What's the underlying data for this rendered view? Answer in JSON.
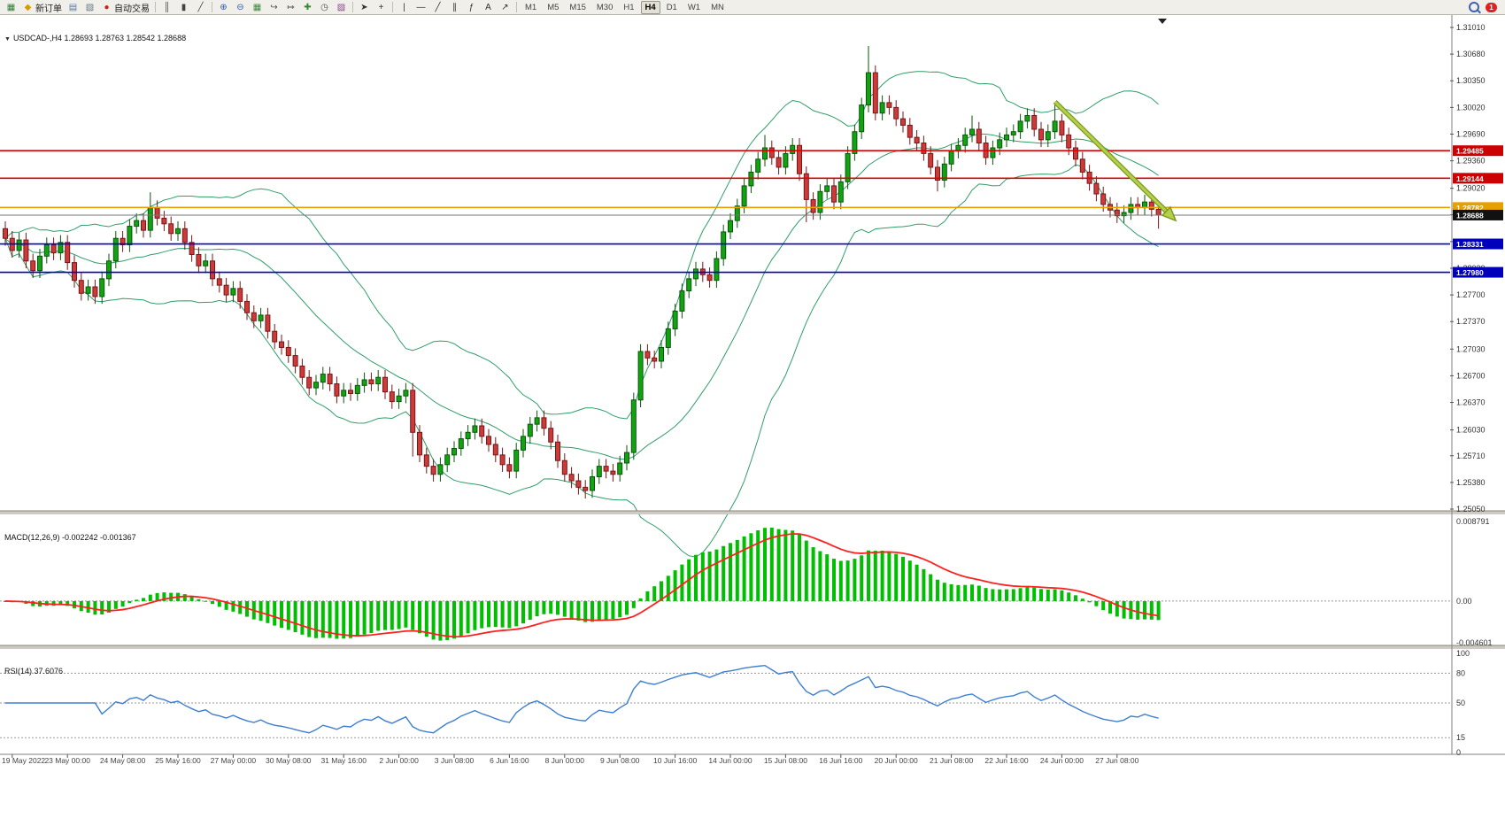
{
  "toolbar": {
    "groups": [
      {
        "items": [
          {
            "name": "new-chart",
            "glyph": "▦",
            "color": "#2e7d32"
          },
          {
            "name": "new-order",
            "glyph": "◆",
            "color": "#d89c00",
            "label": "新订单"
          },
          {
            "name": "print",
            "glyph": "▤",
            "color": "#5577aa"
          },
          {
            "name": "chart-profiles",
            "glyph": "▧",
            "color": "#667788"
          },
          {
            "name": "auto-trading",
            "glyph": "●",
            "color": "#cc2020",
            "label": "自动交易"
          }
        ]
      },
      {
        "items": [
          {
            "name": "bar-chart",
            "glyph": "║",
            "color": "#444444"
          },
          {
            "name": "candlestick-chart",
            "glyph": "▮",
            "color": "#444444"
          },
          {
            "name": "line-chart",
            "glyph": "╱",
            "color": "#444444"
          }
        ]
      },
      {
        "items": [
          {
            "name": "zoom-in",
            "glyph": "⊕",
            "color": "#3355bb"
          },
          {
            "name": "zoom-out",
            "glyph": "⊖",
            "color": "#3355bb"
          },
          {
            "name": "tile-windows",
            "glyph": "▦",
            "color": "#3a8a3a"
          },
          {
            "name": "auto-scroll",
            "glyph": "↪",
            "color": "#555555"
          },
          {
            "name": "chart-shift",
            "glyph": "↦",
            "color": "#555555"
          },
          {
            "name": "indicators",
            "glyph": "✚",
            "color": "#2e8b2e"
          },
          {
            "name": "periods",
            "glyph": "◷",
            "color": "#555555"
          },
          {
            "name": "templates",
            "glyph": "▨",
            "color": "#884488"
          }
        ]
      },
      {
        "items": [
          {
            "name": "cursor",
            "glyph": "➤",
            "color": "#333333"
          },
          {
            "name": "crosshair",
            "glyph": "+",
            "color": "#333333"
          }
        ]
      },
      {
        "items": [
          {
            "name": "vertical-line",
            "glyph": "|",
            "color": "#333333"
          },
          {
            "name": "horizontal-line",
            "glyph": "—",
            "color": "#333333"
          },
          {
            "name": "trendline",
            "glyph": "╱",
            "color": "#333333"
          },
          {
            "name": "equidistant-channel",
            "glyph": "∥",
            "color": "#333333"
          },
          {
            "name": "fibonacci",
            "glyph": "ƒ",
            "color": "#333333"
          },
          {
            "name": "text",
            "glyph": "A",
            "color": "#333333"
          },
          {
            "name": "arrows",
            "glyph": "↗",
            "color": "#333333"
          }
        ]
      }
    ],
    "timeframes": [
      "M1",
      "M5",
      "M15",
      "M30",
      "H1",
      "H4",
      "D1",
      "W1",
      "MN"
    ],
    "active_timeframe": "H4",
    "notification_count": "1"
  },
  "chart_data": {
    "type": "candlestick",
    "corner_marker": "▼",
    "symbol_info": "USDCAD-,H4  1.28693 1.28763 1.28542 1.28688",
    "up_color": "#12a312",
    "up_stroke": "#0a560a",
    "down_color": "#cc3a3a",
    "down_stroke": "#7a1515",
    "first_open": 1.2852,
    "default_wick": 0.0009,
    "closes": [
      1.284,
      1.2825,
      1.2838,
      1.2812,
      1.28,
      1.2818,
      1.2832,
      1.2822,
      1.2835,
      1.281,
      1.2788,
      1.2772,
      1.278,
      1.2768,
      1.279,
      1.2812,
      1.284,
      1.2832,
      1.2855,
      1.2862,
      1.285,
      1.2878,
      1.2865,
      1.2858,
      1.2846,
      1.2852,
      1.2835,
      1.282,
      1.2806,
      1.2812,
      1.279,
      1.2782,
      1.277,
      1.2778,
      1.2762,
      1.2748,
      1.2738,
      1.2745,
      1.2725,
      1.2712,
      1.2705,
      1.2695,
      1.2682,
      1.2668,
      1.2655,
      1.2662,
      1.2672,
      1.266,
      1.2645,
      1.2652,
      1.2648,
      1.2658,
      1.2665,
      1.266,
      1.2668,
      1.265,
      1.2638,
      1.2645,
      1.2652,
      1.26,
      1.2572,
      1.2558,
      1.2548,
      1.256,
      1.2572,
      1.258,
      1.2592,
      1.26,
      1.2608,
      1.2595,
      1.2585,
      1.2572,
      1.256,
      1.2552,
      1.2578,
      1.2595,
      1.261,
      1.2618,
      1.2605,
      1.2588,
      1.2565,
      1.2548,
      1.254,
      1.2532,
      1.2528,
      1.2545,
      1.2558,
      1.2552,
      1.2548,
      1.2562,
      1.2575,
      1.264,
      1.27,
      1.2692,
      1.2688,
      1.2705,
      1.2728,
      1.275,
      1.2775,
      1.279,
      1.2802,
      1.2795,
      1.2788,
      1.2815,
      1.2848,
      1.2862,
      1.288,
      1.2905,
      1.2922,
      1.2938,
      1.2952,
      1.294,
      1.2928,
      1.2945,
      1.2955,
      1.292,
      1.2888,
      1.2872,
      1.2898,
      1.2905,
      1.2885,
      1.291,
      1.2945,
      1.2972,
      1.3005,
      1.3045,
      1.2995,
      1.3008,
      1.3002,
      1.2988,
      1.298,
      1.2965,
      1.2958,
      1.2945,
      1.2928,
      1.2912,
      1.2932,
      1.2948,
      1.2955,
      1.2968,
      1.2975,
      1.2958,
      1.294,
      1.2952,
      1.2962,
      1.2968,
      1.2972,
      1.2985,
      1.2992,
      1.2975,
      1.2962,
      1.2972,
      1.2985,
      1.2968,
      1.2952,
      1.2938,
      1.2922,
      1.2908,
      1.2895,
      1.2882,
      1.2875,
      1.2868,
      1.2872,
      1.2882,
      1.2878,
      1.2885,
      1.2876,
      1.28688
    ],
    "spikes": {
      "21": [
        1.2897,
        null
      ],
      "59": [
        null,
        1.257
      ],
      "84": [
        null,
        1.2518
      ],
      "110": [
        1.2968,
        null
      ],
      "116": [
        null,
        1.286
      ],
      "125": [
        1.3078,
        null
      ],
      "135": [
        null,
        1.2898
      ],
      "140": [
        1.2992,
        null
      ],
      "152": [
        1.3005,
        null
      ],
      "167": [
        null,
        1.2852
      ]
    },
    "price_axis": {
      "max": 1.3101,
      "min": 1.2505,
      "labels": [
        "1.31010",
        "1.30680",
        "1.30350",
        "1.30020",
        "1.29690",
        "1.29360",
        "1.29020",
        "1.28690",
        "1.28360",
        "1.28030",
        "1.27700",
        "1.27370",
        "1.27030",
        "1.26700",
        "1.26370",
        "1.26030",
        "1.25710",
        "1.25380",
        "1.25050"
      ]
    },
    "time_labels": [
      "19 May 2022",
      "23 May 00:00",
      "24 May 08:00",
      "25 May 16:00",
      "27 May 00:00",
      "30 May 08:00",
      "31 May 16:00",
      "2 Jun 00:00",
      "3 Jun 08:00",
      "6 Jun 16:00",
      "8 Jun 00:00",
      "9 Jun 08:00",
      "10 Jun 16:00",
      "14 Jun 00:00",
      "15 Jun 08:00",
      "16 Jun 16:00",
      "20 Jun 00:00",
      "21 Jun 08:00",
      "22 Jun 16:00",
      "24 Jun 00:00",
      "27 Jun 08:00"
    ],
    "levels": [
      {
        "name": "resistance-line-1",
        "price": 1.29485,
        "label": "1.29485",
        "color": "#dd0000",
        "badge": "#cc0000"
      },
      {
        "name": "resistance-line-2",
        "price": 1.29144,
        "label": "1.29144",
        "color": "#dd0000",
        "badge": "#cc0000"
      },
      {
        "name": "pivot-line",
        "price": 1.28782,
        "label": "1.28782",
        "color": "#e8a000",
        "badge": "#e8a000"
      },
      {
        "name": "support-line-1",
        "price": 1.28331,
        "label": "1.28331",
        "color": "#0000cc",
        "badge": "#0000bb"
      },
      {
        "name": "support-line-2",
        "price": 1.2798,
        "label": "1.27980",
        "color": "#0000cc",
        "badge": "#0000bb"
      }
    ],
    "bid": {
      "price": 1.28688,
      "label": "1.28688",
      "color": "#777777",
      "badge": "#111111"
    },
    "bollinger": {
      "period": 20,
      "deviation": 2,
      "color": "#2f9e68"
    },
    "macd": {
      "label": "MACD(12,26,9) -0.002242 -0.001367",
      "max": 0.008791,
      "min": -0.004601,
      "axis": [
        "0.008791",
        "0.00",
        "-0.004601"
      ],
      "hist_color": "#00bf00",
      "signal_color": "#ff2020"
    },
    "rsi": {
      "label": "RSI(14) 37.6076",
      "color": "#3f7fd0",
      "axis_labels": [
        [
          "100",
          100
        ],
        [
          "80",
          80
        ],
        [
          "50",
          50
        ],
        [
          "15",
          15
        ],
        [
          "0",
          0
        ]
      ],
      "dash_levels": [
        80,
        50,
        15
      ]
    },
    "trend_arrow": {
      "from_index": 152,
      "from_price": 1.3009,
      "to_index": 169.5,
      "to_price": 1.2862,
      "fill": "#b4cf4a",
      "edge": "#7b9a20"
    }
  }
}
